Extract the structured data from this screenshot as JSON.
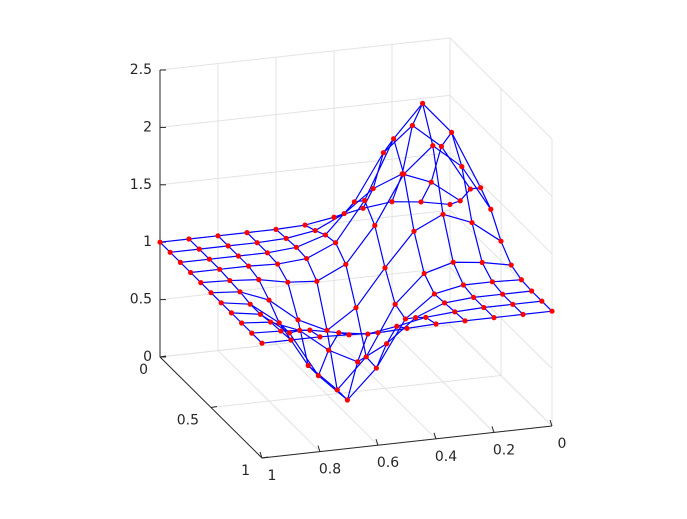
{
  "chart_data": {
    "type": "surface",
    "x": [
      0,
      0.1,
      0.2,
      0.3,
      0.4,
      0.5,
      0.6,
      0.7,
      0.8,
      0.9,
      1
    ],
    "y": [
      0,
      0.1,
      0.2,
      0.3,
      0.4,
      0.5,
      0.6,
      0.7,
      0.8,
      0.9,
      1
    ],
    "z": [
      [
        1.05,
        1.1,
        1.13,
        1.1,
        1.05,
        1.01,
        1.0,
        1.0,
        1.0,
        1.0,
        1.0
      ],
      [
        1.17,
        1.36,
        1.46,
        1.36,
        1.17,
        1.05,
        1.01,
        1.0,
        1.0,
        1.0,
        1.0
      ],
      [
        1.36,
        1.76,
        1.97,
        1.76,
        1.36,
        1.1,
        1.02,
        1.0,
        1.0,
        1.0,
        1.0
      ],
      [
        1.46,
        1.97,
        2.25,
        1.97,
        1.46,
        1.12,
        1.01,
        0.99,
        1.0,
        1.0,
        1.0
      ],
      [
        1.36,
        1.76,
        1.97,
        1.75,
        1.33,
        1.02,
        0.9,
        0.92,
        0.97,
        0.99,
        1.0
      ],
      [
        1.17,
        1.36,
        1.46,
        1.34,
        1.05,
        0.73,
        0.56,
        0.68,
        0.88,
        0.98,
        1.0
      ],
      [
        1.05,
        1.1,
        1.13,
        1.06,
        0.82,
        0.39,
        0.13,
        0.37,
        0.77,
        0.96,
        1.0
      ],
      [
        1.01,
        1.02,
        1.02,
        0.97,
        0.78,
        0.38,
        0.13,
        0.37,
        0.77,
        0.96,
        1.0
      ],
      [
        1.0,
        1.0,
        1.0,
        0.98,
        0.88,
        0.68,
        0.55,
        0.68,
        0.88,
        0.98,
        1.0
      ],
      [
        1.0,
        1.0,
        1.0,
        0.99,
        0.97,
        0.92,
        0.88,
        0.92,
        0.97,
        0.99,
        1.0
      ],
      [
        1.0,
        1.0,
        1.0,
        1.0,
        1.0,
        0.99,
        0.98,
        0.99,
        1.0,
        1.0,
        1.0
      ]
    ],
    "line_color": "#0000ff",
    "marker_color": "#ff0000",
    "xlim": [
      0,
      1
    ],
    "xticks": [
      0,
      0.2,
      0.4,
      0.6,
      0.8,
      1
    ],
    "ylim": [
      0,
      1
    ],
    "yticks": [
      0,
      0.5,
      1
    ],
    "zlim": [
      0,
      2.5
    ],
    "zticks": [
      0,
      0.5,
      1,
      1.5,
      2,
      2.5
    ],
    "grid": true
  }
}
